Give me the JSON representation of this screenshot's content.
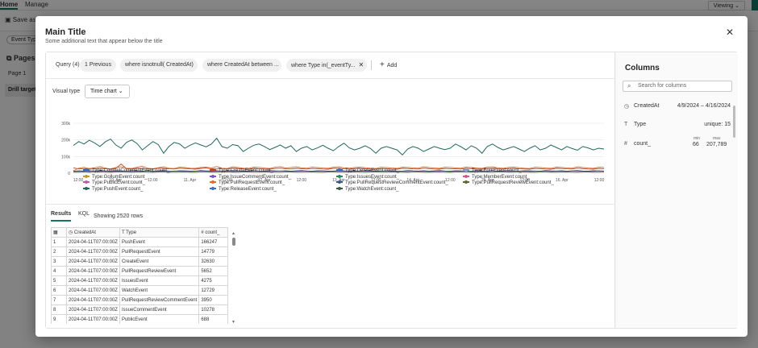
{
  "background": {
    "tabs": [
      "Home",
      "Manage"
    ],
    "save_label": "Save as",
    "filter_chip": "Event Type",
    "pages_title": "Pages",
    "page_item": "Page 1",
    "drill_item": "Drill target",
    "viewing_label": "Viewing"
  },
  "modal": {
    "title": "Main Title",
    "subtitle": "Some additional text that appear below the title",
    "close_icon": "close-icon"
  },
  "query": {
    "label": "Query (4)",
    "previous_label": "1 Previous",
    "steps": [
      "where isnotnull( CreatedAt)",
      "where CreatedAt between ...",
      "where Type in(_eventTy..."
    ],
    "add_label": "Add"
  },
  "visual": {
    "label": "Visual type",
    "value": "Time chart"
  },
  "chart_data": {
    "type": "line",
    "title": "",
    "xlabel": "",
    "ylabel": "",
    "ylim": [
      0,
      300000
    ],
    "y_ticks": [
      "300k",
      "200k",
      "100k",
      "0"
    ],
    "x_tick_labels": [
      "12:00",
      "10. Apr",
      "12:00",
      "11. Apr",
      "12:00",
      "12. Apr",
      "12:00",
      "13. Apr",
      "12:00",
      "14. Apr",
      "12:00",
      "15. Apr",
      "12:00",
      "16. Apr",
      "12:00"
    ],
    "series": [
      {
        "name": "Type:PushEvent:count_",
        "color": "#1f6a5c",
        "values": [
          166247,
          190000,
          175000,
          198000,
          182000,
          160000,
          188000,
          205000,
          170000,
          150000,
          185000,
          200000,
          178000,
          140000,
          165000,
          190000,
          172000,
          120000,
          160000,
          185000,
          176000,
          150000,
          168000,
          182000,
          170000,
          158000,
          175000,
          210000,
          160000,
          150000,
          172000,
          166000,
          130000,
          150000,
          168000,
          175000,
          160000,
          142000,
          155000,
          170000,
          150000,
          165000,
          130000,
          150000,
          160000,
          140000,
          152000,
          168000,
          150000,
          135000,
          160000,
          180000,
          152000,
          140000,
          150000,
          165000,
          148000,
          120000,
          150000,
          160000,
          150000,
          140000,
          110000,
          145000,
          160000,
          150000,
          130000,
          145000,
          160000,
          150000,
          142000,
          150000,
          175000,
          160000,
          140000,
          165000,
          150000,
          120000,
          160000,
          175000,
          155000,
          140000,
          150000,
          160000,
          145000,
          130000,
          150000,
          165000,
          140000,
          150000,
          170000,
          155000,
          140000,
          160000,
          148000,
          138000,
          160000,
          152000,
          140000,
          150000,
          145000
        ]
      },
      {
        "name": "Type:PullRequestEvent:count_",
        "color": "#e46b2a",
        "values": [
          14779,
          30000,
          35000,
          28000,
          32000,
          40000,
          30000,
          26000,
          34000,
          38000,
          30000,
          28000,
          36000,
          42000,
          30000,
          27000,
          33000,
          38000,
          30000,
          28000,
          36000,
          34000,
          30000,
          29000,
          35000,
          37000,
          31000,
          40000,
          30000,
          28000,
          38000,
          34000,
          30000,
          29000,
          37000,
          35000,
          31000,
          28000,
          36000,
          39000,
          31000,
          34000,
          38000,
          32000,
          30000,
          37000,
          34000,
          31000,
          29000,
          36000,
          38000,
          32000,
          30000,
          35000,
          37000,
          33000,
          30000,
          28000,
          36000,
          34000,
          31000,
          29000,
          37000,
          35000,
          32000,
          30000,
          38000,
          34000,
          31000,
          29000,
          36000,
          35000,
          32000,
          30000,
          37000,
          34000,
          31000,
          29000,
          36000,
          38000,
          32000,
          30000,
          35000,
          37000,
          33000,
          30000,
          28000,
          36000,
          34000,
          31000,
          29000,
          37000,
          35000,
          32000,
          30000,
          38000,
          34000,
          31000,
          29000,
          36000,
          35000
        ]
      },
      {
        "name": "Type:CreateEvent:count_",
        "color": "#b84a1c",
        "values": [
          32630,
          25000,
          28000,
          24000,
          26000,
          30000,
          27000,
          24000,
          29000,
          55000,
          27000,
          25000,
          30000,
          28000,
          26000,
          24000,
          31000,
          29000,
          26000,
          25000,
          30000,
          28000,
          26000,
          24000,
          29000,
          31000,
          27000,
          25000,
          28000,
          26000,
          30000,
          28000,
          26000,
          24000,
          29000,
          27000,
          25000,
          24000,
          28000,
          30000,
          26000,
          25000,
          29000,
          27000,
          25000,
          28000,
          27000,
          25000,
          24000,
          29000,
          30000,
          26000,
          25000,
          28000,
          29000,
          26000,
          25000,
          24000,
          28000,
          27000,
          25000,
          24000,
          29000,
          28000,
          26000,
          25000,
          30000,
          27000,
          25000,
          24000,
          28000,
          27000,
          26000,
          25000,
          29000,
          27000,
          25000,
          24000,
          28000,
          30000,
          26000,
          25000,
          28000,
          29000,
          26000,
          25000,
          24000,
          28000,
          27000,
          25000,
          24000,
          29000,
          28000,
          26000,
          25000,
          30000,
          27000,
          25000,
          24000,
          28000,
          27000
        ]
      },
      {
        "name": "Type:WatchEvent:count_",
        "color": "#3a5a40",
        "values": [
          12729,
          14000,
          13000,
          15000,
          12000,
          16000,
          14000,
          13000,
          15000,
          14000,
          12000,
          16000,
          14000,
          13000,
          15000,
          12000,
          14000,
          16000,
          13000,
          12000,
          15000,
          14000,
          13000,
          12000,
          16000,
          14000,
          13000,
          15000,
          12000,
          14000,
          16000,
          13000,
          12000,
          15000,
          14000,
          13000,
          12000,
          16000,
          14000,
          13000,
          15000,
          12000,
          14000,
          16000,
          13000,
          12000,
          15000,
          14000,
          13000,
          12000,
          16000,
          14000,
          13000,
          15000,
          12000,
          14000,
          16000,
          13000,
          12000,
          15000,
          14000,
          13000,
          12000,
          16000,
          14000,
          13000,
          15000,
          12000,
          14000,
          16000,
          13000,
          12000,
          15000,
          14000,
          13000,
          12000,
          16000,
          14000,
          13000,
          15000,
          12000,
          14000,
          16000,
          13000,
          12000,
          15000,
          14000,
          13000,
          12000,
          16000,
          14000,
          13000,
          15000,
          12000,
          14000,
          16000,
          13000,
          12000,
          15000,
          14000,
          13000
        ]
      },
      {
        "name": "Type:IssueCommentEvent:count_",
        "color": "#7b56c4",
        "values": [
          10278,
          11000,
          12000,
          10000,
          13000,
          11000,
          12000,
          10000,
          11000,
          13000,
          12000,
          10000,
          11000,
          12000,
          13000,
          10000,
          11000,
          12000,
          10000,
          13000,
          11000,
          12000,
          10000,
          11000,
          13000,
          12000,
          10000,
          11000,
          12000,
          13000,
          10000,
          11000,
          12000,
          10000,
          13000,
          11000,
          12000,
          10000,
          11000,
          13000,
          12000,
          10000,
          11000,
          12000,
          13000,
          10000,
          11000,
          12000,
          10000,
          13000,
          11000,
          12000,
          10000,
          11000,
          13000,
          12000,
          10000,
          11000,
          12000,
          13000,
          10000,
          11000,
          12000,
          10000,
          13000,
          11000,
          12000,
          10000,
          11000,
          13000,
          12000,
          10000,
          11000,
          12000,
          13000,
          10000,
          11000,
          12000,
          10000,
          13000,
          11000,
          12000,
          10000,
          11000,
          13000,
          12000,
          10000,
          11000,
          12000,
          13000,
          10000,
          11000,
          12000,
          10000,
          13000,
          11000,
          12000,
          10000,
          11000,
          13000,
          12000
        ]
      },
      {
        "name": "Type:PullRequestReviewEvent:count_",
        "color": "#5c6b2f",
        "values": [
          5652,
          6000,
          7000,
          5500,
          6500,
          7000,
          6000,
          5500,
          6800,
          7000,
          6000,
          5800,
          6500,
          7000,
          6000,
          5500,
          6800,
          7000,
          6000,
          5800,
          6500,
          7000,
          6000,
          5500,
          6800,
          7000,
          6000,
          5800,
          6500,
          7000,
          6000,
          5500,
          6800,
          7000,
          6000,
          5800,
          6500,
          7000,
          6000,
          5500,
          6800,
          7000,
          6000,
          5800,
          6500,
          7000,
          6000,
          5500,
          6800,
          7000,
          6000,
          5800,
          6500,
          7000,
          6000,
          5500,
          6800,
          7000,
          6000,
          5800,
          6500,
          7000,
          6000,
          5500,
          6800,
          7000,
          6000,
          5800,
          6500,
          7000,
          6000,
          5500,
          6800,
          7000,
          6000,
          5800,
          6500,
          7000,
          6000,
          5500,
          6800,
          7000,
          6000,
          5800,
          6500,
          7000,
          6000,
          5500,
          6800,
          7000,
          6000,
          5800,
          6500,
          7000,
          6000,
          5500,
          6800,
          7000,
          6000,
          5800,
          6500
        ]
      }
    ]
  },
  "legend": [
    {
      "label": "Type:CommitCommentEvent:count_",
      "color": "#3b6fc4"
    },
    {
      "label": "Type:CreateEvent:count_",
      "color": "#b84a1c"
    },
    {
      "label": "Type:DeleteEvent:count_",
      "color": "#3b6fc4"
    },
    {
      "label": "Type:ForkEvent:count_",
      "color": "#7fa4d8"
    },
    {
      "label": "Type:GollumEvent:count_",
      "color": "#c89a2a"
    },
    {
      "label": "Type:IssueCommentEvent:count_",
      "color": "#7b56c4"
    },
    {
      "label": "Type:IssuesEvent:count_",
      "color": "#2a8a5a"
    },
    {
      "label": "Type:MemberEvent:count_",
      "color": "#d05a8a"
    },
    {
      "label": "Type:PublicEvent:count_",
      "color": "#c45aa8"
    },
    {
      "label": "Type:PullRequestEvent:count_",
      "color": "#e46b2a"
    },
    {
      "label": "Type:PullRequestReviewCommentEvent:count_",
      "color": "#3a5a80"
    },
    {
      "label": "Type:PullRequestReviewEvent:count_",
      "color": "#5c6b2f"
    },
    {
      "label": "Type:PushEvent:count_",
      "color": "#1f6a5c"
    },
    {
      "label": "Type:ReleaseEvent:count_",
      "color": "#3b6fc4"
    },
    {
      "label": "Type:WatchEvent:count_",
      "color": "#3a5a40"
    }
  ],
  "results": {
    "tab_results": "Results",
    "tab_kql": "KQL",
    "row_count": "Showing 2520 rows",
    "columns": [
      "",
      "CreatedAt",
      "Type",
      "count_"
    ],
    "rows": [
      [
        "1",
        "2024-04-11T07:00:00Z",
        "PushEvent",
        "166247"
      ],
      [
        "2",
        "2024-04-11T07:00:00Z",
        "PullRequestEvent",
        "14779"
      ],
      [
        "3",
        "2024-04-11T07:00:00Z",
        "CreateEvent",
        "32630"
      ],
      [
        "4",
        "2024-04-11T07:00:00Z",
        "PullRequestReviewEvent",
        "5652"
      ],
      [
        "5",
        "2024-04-11T07:00:00Z",
        "IssuesEvent",
        "4275"
      ],
      [
        "6",
        "2024-04-11T07:00:00Z",
        "WatchEvent",
        "12729"
      ],
      [
        "7",
        "2024-04-11T07:00:00Z",
        "PullRequestReviewCommentEvent",
        "3950"
      ],
      [
        "8",
        "2024-04-11T07:00:00Z",
        "IssueCommentEvent",
        "10278"
      ],
      [
        "9",
        "2024-04-11T07:00:00Z",
        "PublicEvent",
        "688"
      ]
    ]
  },
  "columns_panel": {
    "title": "Columns",
    "search_placeholder": "Search for columns",
    "items": [
      {
        "name": "CreatedAt",
        "value": "4/9/2024 – 4/16/2024"
      },
      {
        "name": "Type",
        "value": "unique: 15"
      },
      {
        "name": "count_",
        "min_label": "min",
        "max_label": "max",
        "min": "66",
        "max": "207,789"
      }
    ]
  }
}
